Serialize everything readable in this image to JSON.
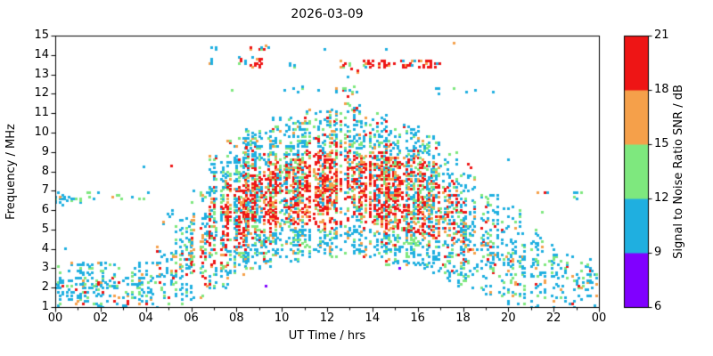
{
  "chart_data": {
    "type": "scatter",
    "title": "2026-03-09",
    "xlabel": "UT Time / hrs",
    "ylabel": "Frequency / MHz",
    "xlim": [
      0,
      24
    ],
    "ylim": [
      1,
      15
    ],
    "grid": false,
    "xticks": [
      {
        "v": 0,
        "label": "00"
      },
      {
        "v": 2,
        "label": "02"
      },
      {
        "v": 4,
        "label": "04"
      },
      {
        "v": 6,
        "label": "06"
      },
      {
        "v": 8,
        "label": "08"
      },
      {
        "v": 10,
        "label": "10"
      },
      {
        "v": 12,
        "label": "12"
      },
      {
        "v": 14,
        "label": "14"
      },
      {
        "v": 16,
        "label": "16"
      },
      {
        "v": 18,
        "label": "18"
      },
      {
        "v": 20,
        "label": "20"
      },
      {
        "v": 22,
        "label": "22"
      },
      {
        "v": 24,
        "label": "00"
      }
    ],
    "xminor": [
      1,
      3,
      5,
      7,
      9,
      11,
      13,
      15,
      17,
      19,
      21,
      23
    ],
    "yticks": [
      1,
      2,
      3,
      4,
      5,
      6,
      7,
      8,
      9,
      10,
      11,
      12,
      13,
      14,
      15
    ],
    "colorbar": {
      "label": "Signal to Noise Ratio SNR / dB",
      "ticks": [
        6,
        9,
        12,
        15,
        18,
        21
      ],
      "segment_colors_bottom_to_top": [
        "#8000ff",
        "#1fafe0",
        "#7ee87e",
        "#f5a04a",
        "#ee1515"
      ],
      "segment_ranges": [
        [
          6,
          9
        ],
        [
          9,
          12
        ],
        [
          12,
          15
        ],
        [
          15,
          18
        ],
        [
          18,
          21
        ]
      ]
    },
    "point_colors": {
      "p": "#8000ff",
      "b": "#1fafe0",
      "g": "#7ee87e",
      "o": "#f5a04a",
      "r": "#ee1515"
    },
    "bands_format": [
      "t_start_hr",
      "t_end_hr",
      "f_min_MHz",
      "f_max_MHz",
      "density",
      "hot_fraction",
      "core_f_min",
      "core_f_max"
    ],
    "bands": [
      [
        0.0,
        4.3,
        1.0,
        3.3,
        0.3,
        0.05,
        1.2,
        2.9
      ],
      [
        4.3,
        5.2,
        1.0,
        4.2,
        0.3,
        0.1,
        1.4,
        3.3
      ],
      [
        5.2,
        6.0,
        1.2,
        5.6,
        0.32,
        0.18,
        2.0,
        4.2
      ],
      [
        6.0,
        6.8,
        1.5,
        7.0,
        0.36,
        0.32,
        2.5,
        5.2
      ],
      [
        6.8,
        7.6,
        2.0,
        8.8,
        0.42,
        0.45,
        3.2,
        6.6
      ],
      [
        7.6,
        8.4,
        2.5,
        9.7,
        0.48,
        0.55,
        4.0,
        7.6
      ],
      [
        8.4,
        9.6,
        3.0,
        10.2,
        0.5,
        0.6,
        4.6,
        8.2
      ],
      [
        9.6,
        11.0,
        3.4,
        10.8,
        0.5,
        0.62,
        5.0,
        8.8
      ],
      [
        11.0,
        12.4,
        3.6,
        11.2,
        0.5,
        0.62,
        5.0,
        9.2
      ],
      [
        12.4,
        13.4,
        3.8,
        11.6,
        0.5,
        0.62,
        5.2,
        9.4
      ],
      [
        13.4,
        14.6,
        3.6,
        11.0,
        0.5,
        0.62,
        5.0,
        9.0
      ],
      [
        14.6,
        16.0,
        3.2,
        10.4,
        0.49,
        0.6,
        4.8,
        8.8
      ],
      [
        16.0,
        17.0,
        2.8,
        9.8,
        0.46,
        0.55,
        4.5,
        8.5
      ],
      [
        17.0,
        17.8,
        2.4,
        9.0,
        0.4,
        0.4,
        4.0,
        7.5
      ],
      [
        17.8,
        18.6,
        2.0,
        8.0,
        0.34,
        0.22,
        3.4,
        6.6
      ],
      [
        18.6,
        19.6,
        1.6,
        7.0,
        0.26,
        0.12,
        2.6,
        5.6
      ],
      [
        19.6,
        20.6,
        1.2,
        6.2,
        0.22,
        0.1,
        2.0,
        5.0
      ],
      [
        20.6,
        21.6,
        1.0,
        5.2,
        0.2,
        0.07,
        1.6,
        4.2
      ],
      [
        21.6,
        22.8,
        1.0,
        4.4,
        0.2,
        0.07,
        1.3,
        3.6
      ],
      [
        22.8,
        24.0,
        1.0,
        3.6,
        0.2,
        0.06,
        1.2,
        3.0
      ],
      [
        0.0,
        1.15,
        6.2,
        6.95,
        0.22,
        0.02,
        null,
        null
      ],
      [
        1.3,
        2.1,
        6.5,
        7.0,
        0.18,
        0.02,
        null,
        null
      ],
      [
        2.4,
        3.05,
        6.5,
        6.9,
        0.18,
        0,
        null,
        null
      ],
      [
        3.3,
        4.15,
        6.4,
        6.9,
        0.18,
        0,
        null,
        null
      ],
      [
        4.75,
        5.3,
        5.3,
        6.0,
        0.15,
        0,
        null,
        null
      ],
      [
        21.3,
        21.75,
        6.6,
        7.0,
        0.2,
        0.25,
        null,
        null
      ],
      [
        22.9,
        23.45,
        6.4,
        6.9,
        0.18,
        0,
        null,
        null
      ],
      [
        6.8,
        7.35,
        13.5,
        13.85,
        0.22,
        0.08,
        null,
        null
      ],
      [
        8.0,
        9.1,
        13.4,
        13.9,
        0.42,
        0.7,
        13.4,
        13.9
      ],
      [
        8.2,
        8.65,
        14.3,
        14.65,
        0.35,
        0.55,
        14.3,
        14.65
      ],
      [
        9.0,
        9.45,
        14.3,
        14.55,
        0.25,
        0.45,
        null,
        null
      ],
      [
        8.3,
        12.4,
        12.0,
        12.4,
        0.06,
        0.04,
        null,
        null
      ],
      [
        6.9,
        7.15,
        14.2,
        14.45,
        0.2,
        0,
        null,
        null
      ],
      [
        10.35,
        10.7,
        13.4,
        13.65,
        0.22,
        0.05,
        null,
        null
      ],
      [
        11.4,
        11.95,
        14.3,
        14.55,
        0.18,
        0,
        null,
        null
      ],
      [
        12.4,
        13.3,
        11.8,
        12.45,
        0.3,
        0.25,
        11.9,
        12.3
      ],
      [
        12.6,
        14.7,
        13.4,
        13.7,
        0.34,
        0.85,
        13.4,
        13.7
      ],
      [
        14.95,
        17.05,
        13.4,
        13.7,
        0.32,
        0.85,
        13.4,
        13.7
      ],
      [
        12.95,
        13.35,
        13.0,
        13.35,
        0.22,
        0.5,
        null,
        null
      ],
      [
        14.4,
        14.75,
        14.3,
        14.5,
        0.16,
        0,
        null,
        null
      ],
      [
        15.3,
        15.75,
        12.2,
        12.55,
        0.16,
        0,
        null,
        null
      ],
      [
        16.3,
        17.65,
        12.0,
        12.5,
        0.1,
        0.1,
        null,
        null
      ],
      [
        18.05,
        18.6,
        11.9,
        12.3,
        0.22,
        0.2,
        null,
        null
      ]
    ],
    "extra_points_format": [
      "t_hr",
      "f_MHz",
      "color_class"
    ],
    "extra_points": [
      [
        5.1,
        8.3,
        "r"
      ],
      [
        18.2,
        8.4,
        "r"
      ],
      [
        18.35,
        8.2,
        "r"
      ],
      [
        17.6,
        14.65,
        "o"
      ],
      [
        3.9,
        8.25,
        "b"
      ],
      [
        7.8,
        12.2,
        "g"
      ],
      [
        12.9,
        12.9,
        "b"
      ],
      [
        0.45,
        4.05,
        "b"
      ],
      [
        9.3,
        2.1,
        "p"
      ],
      [
        15.2,
        3.0,
        "p"
      ],
      [
        19.3,
        12.1,
        "b"
      ],
      [
        21.5,
        5.9,
        "g"
      ],
      [
        23.2,
        2.0,
        "o"
      ],
      [
        1.9,
        2.2,
        "r"
      ],
      [
        2.6,
        1.6,
        "o"
      ],
      [
        0.3,
        6.6,
        "b"
      ],
      [
        20.0,
        8.6,
        "b"
      ]
    ]
  }
}
